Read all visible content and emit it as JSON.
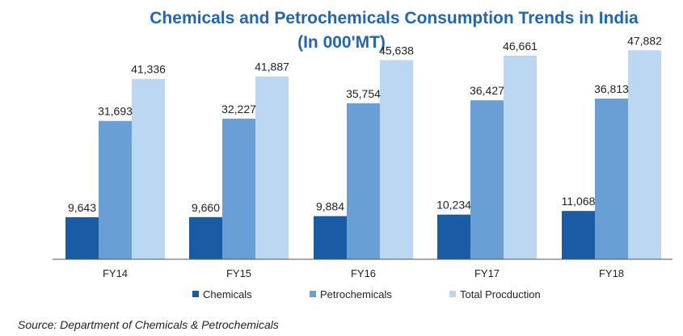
{
  "chart_data": {
    "type": "bar",
    "title": "Chemicals and Petrochemicals Consumption Trends in India",
    "subtitle": "(In 000'MT)",
    "categories": [
      "FY14",
      "FY15",
      "FY16",
      "FY17",
      "FY18"
    ],
    "series": [
      {
        "name": "Chemicals",
        "color": "#1a5ba6",
        "values": [
          9643,
          9660,
          9884,
          10234,
          11068
        ]
      },
      {
        "name": "Petrochemicals",
        "color": "#6a9fd6",
        "values": [
          31693,
          32227,
          35754,
          36427,
          36813
        ]
      },
      {
        "name": "Total Procduction",
        "color": "#bcd7f1",
        "values": [
          41336,
          41887,
          45638,
          46661,
          47882
        ]
      }
    ],
    "ylim": [
      0,
      52000
    ],
    "grid": false,
    "legend": "bottom"
  },
  "source": "Source: Department of Chemicals & Petrochemicals"
}
